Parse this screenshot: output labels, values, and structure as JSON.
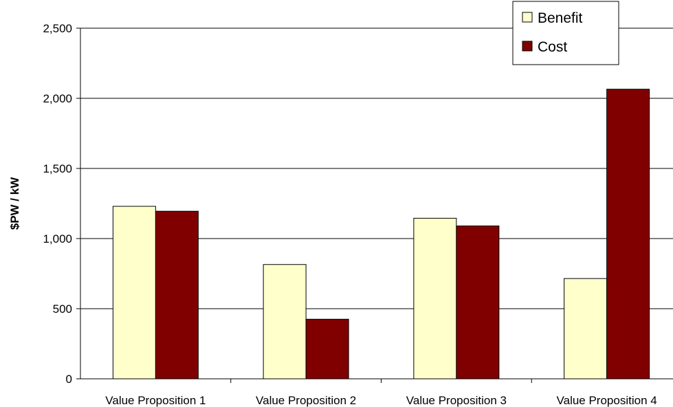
{
  "chart_data": {
    "type": "bar",
    "title": "",
    "xlabel": "",
    "ylabel": "$PW / kW",
    "categories": [
      "Value Proposition 1",
      "Value Proposition 2",
      "Value Proposition 3",
      "Value Proposition 4"
    ],
    "series": [
      {
        "name": "Benefit",
        "values": [
          1230,
          815,
          1145,
          715
        ],
        "color": "#FFFFCC"
      },
      {
        "name": "Cost",
        "values": [
          1195,
          425,
          1090,
          2065
        ],
        "color": "#800000"
      }
    ],
    "ylim": [
      0,
      2500
    ],
    "yticks": [
      0,
      500,
      1000,
      1500,
      2000,
      2500
    ],
    "ytick_labels": [
      "0",
      "500",
      "1,000",
      "1,500",
      "2,000",
      "2,500"
    ],
    "grid": true,
    "legend_position": "top-right"
  }
}
